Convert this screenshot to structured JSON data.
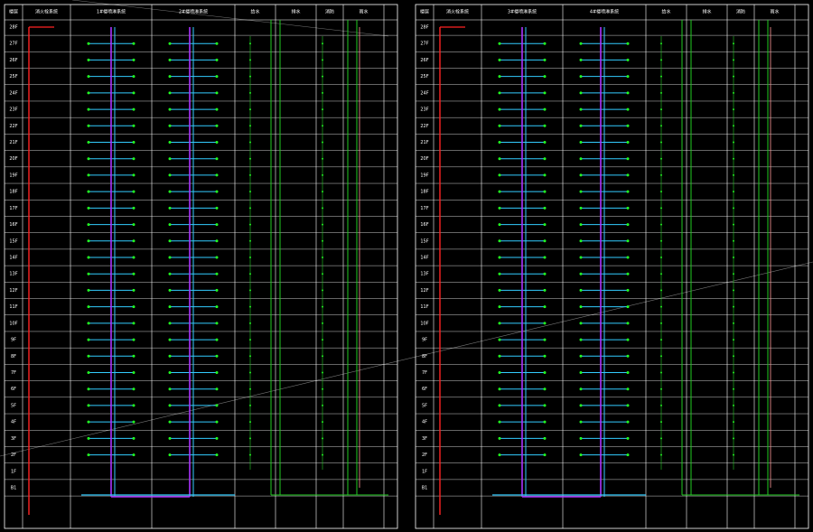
{
  "panels": [
    {
      "header": [
        "楼层",
        "消火栓系统",
        "1#楼喷淋系统",
        "2#楼喷淋系统",
        "给水",
        "排水",
        "消防",
        "雨水"
      ],
      "floors": [
        "28F",
        "27F",
        "26F",
        "25F",
        "24F",
        "23F",
        "22F",
        "21F",
        "20F",
        "19F",
        "18F",
        "17F",
        "16F",
        "15F",
        "14F",
        "13F",
        "12F",
        "11F",
        "10F",
        "9F",
        "8F",
        "7F",
        "6F",
        "5F",
        "4F",
        "3F",
        "2F",
        "1F",
        "B1"
      ]
    },
    {
      "header": [
        "楼层",
        "消火栓系统",
        "3#楼喷淋系统",
        "4#楼喷淋系统",
        "给水",
        "排水",
        "消防",
        "雨水"
      ],
      "floors": [
        "28F",
        "27F",
        "26F",
        "25F",
        "24F",
        "23F",
        "22F",
        "21F",
        "20F",
        "19F",
        "18F",
        "17F",
        "16F",
        "15F",
        "14F",
        "13F",
        "12F",
        "11F",
        "10F",
        "9F",
        "8F",
        "7F",
        "6F",
        "5F",
        "4F",
        "3F",
        "2F",
        "1F",
        "B1"
      ]
    }
  ]
}
